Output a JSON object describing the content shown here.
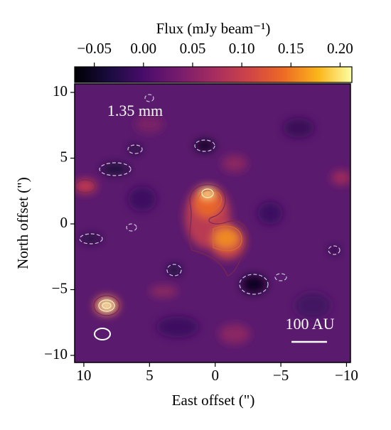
{
  "chart_data": {
    "type": "image",
    "colorbar_label": "Flux (mJy beam⁻¹)",
    "clim": [
      -0.07,
      0.212
    ],
    "cticks": [
      {
        "value": -0.05,
        "label": "−0.05"
      },
      {
        "value": 0,
        "label": "0.00"
      },
      {
        "value": 0.05,
        "label": "0.05"
      },
      {
        "value": 0.1,
        "label": "0.10"
      },
      {
        "value": 0.15,
        "label": "0.15"
      },
      {
        "value": 0.2,
        "label": "0.20"
      }
    ],
    "xlabel": "East offset (\")",
    "ylabel": "North offset (\")",
    "xlim": [
      10.7,
      -10.3
    ],
    "ylim": [
      -10.54,
      10.65
    ],
    "xticks": [
      10,
      5,
      0,
      {
        "value": -5,
        "label": "−5"
      },
      {
        "value": -10,
        "label": "−10"
      }
    ],
    "yticks": [
      {
        "value": -10,
        "label": "−10"
      },
      {
        "value": -5,
        "label": "−5"
      },
      0,
      5,
      10
    ],
    "annotations": [
      "1.35 mm",
      "100 AU"
    ]
  }
}
